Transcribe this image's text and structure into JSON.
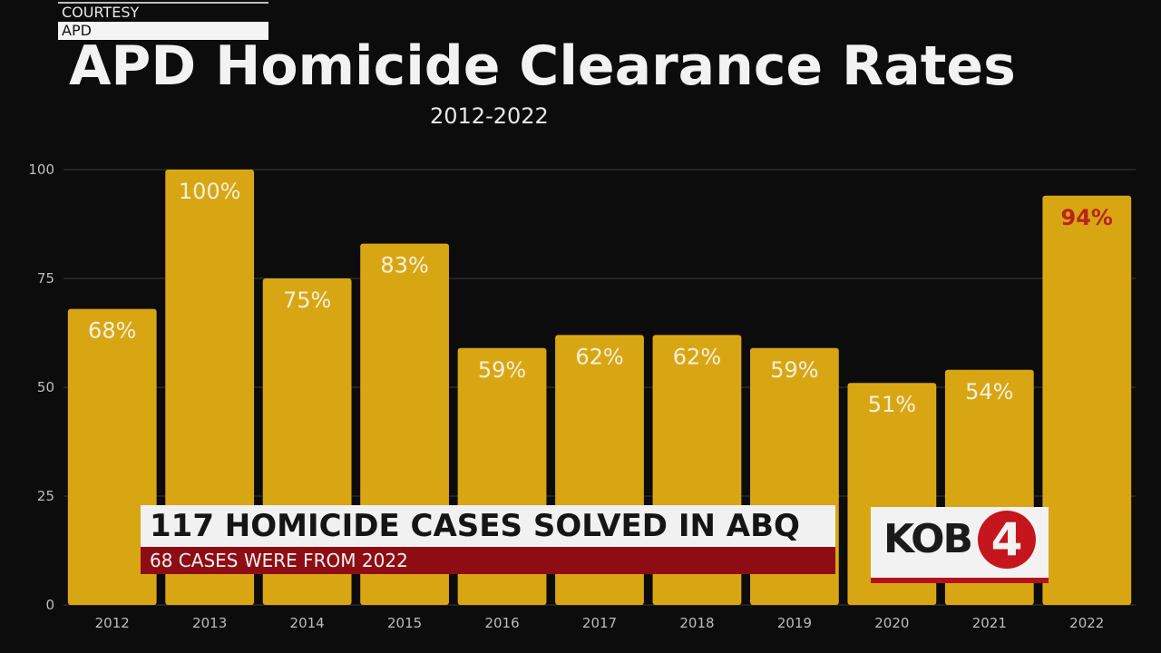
{
  "courtesy": {
    "line1": "COURTESY",
    "line2": "APD"
  },
  "chart_data": {
    "type": "bar",
    "title": "APD Homicide Clearance Rates",
    "subtitle": "2012-2022",
    "categories": [
      "2012",
      "2013",
      "2014",
      "2015",
      "2016",
      "2017",
      "2018",
      "2019",
      "2020",
      "2021",
      "2022"
    ],
    "values": [
      68,
      100,
      75,
      83,
      59,
      62,
      62,
      59,
      51,
      54,
      94
    ],
    "data_labels": [
      "68%",
      "100%",
      "75%",
      "83%",
      "59%",
      "62%",
      "62%",
      "59%",
      "51%",
      "54%",
      "94%"
    ],
    "highlight_index": 10,
    "ylim": [
      0,
      100
    ],
    "yticks": [
      0,
      25,
      50,
      75,
      100
    ],
    "grid": true,
    "xlabel": "",
    "ylabel": "",
    "colors": {
      "bar": "#d9a613",
      "label": "#f6f0dc",
      "highlight_label": "#b8241c",
      "grid": "#3a3a3a",
      "tick": "#bdbdbd"
    }
  },
  "lower_third": {
    "headline": "117 HOMICIDE CASES SOLVED IN ABQ",
    "subline": "68 CASES WERE FROM 2022"
  },
  "logo": {
    "text": "KOB",
    "mark": "4"
  }
}
